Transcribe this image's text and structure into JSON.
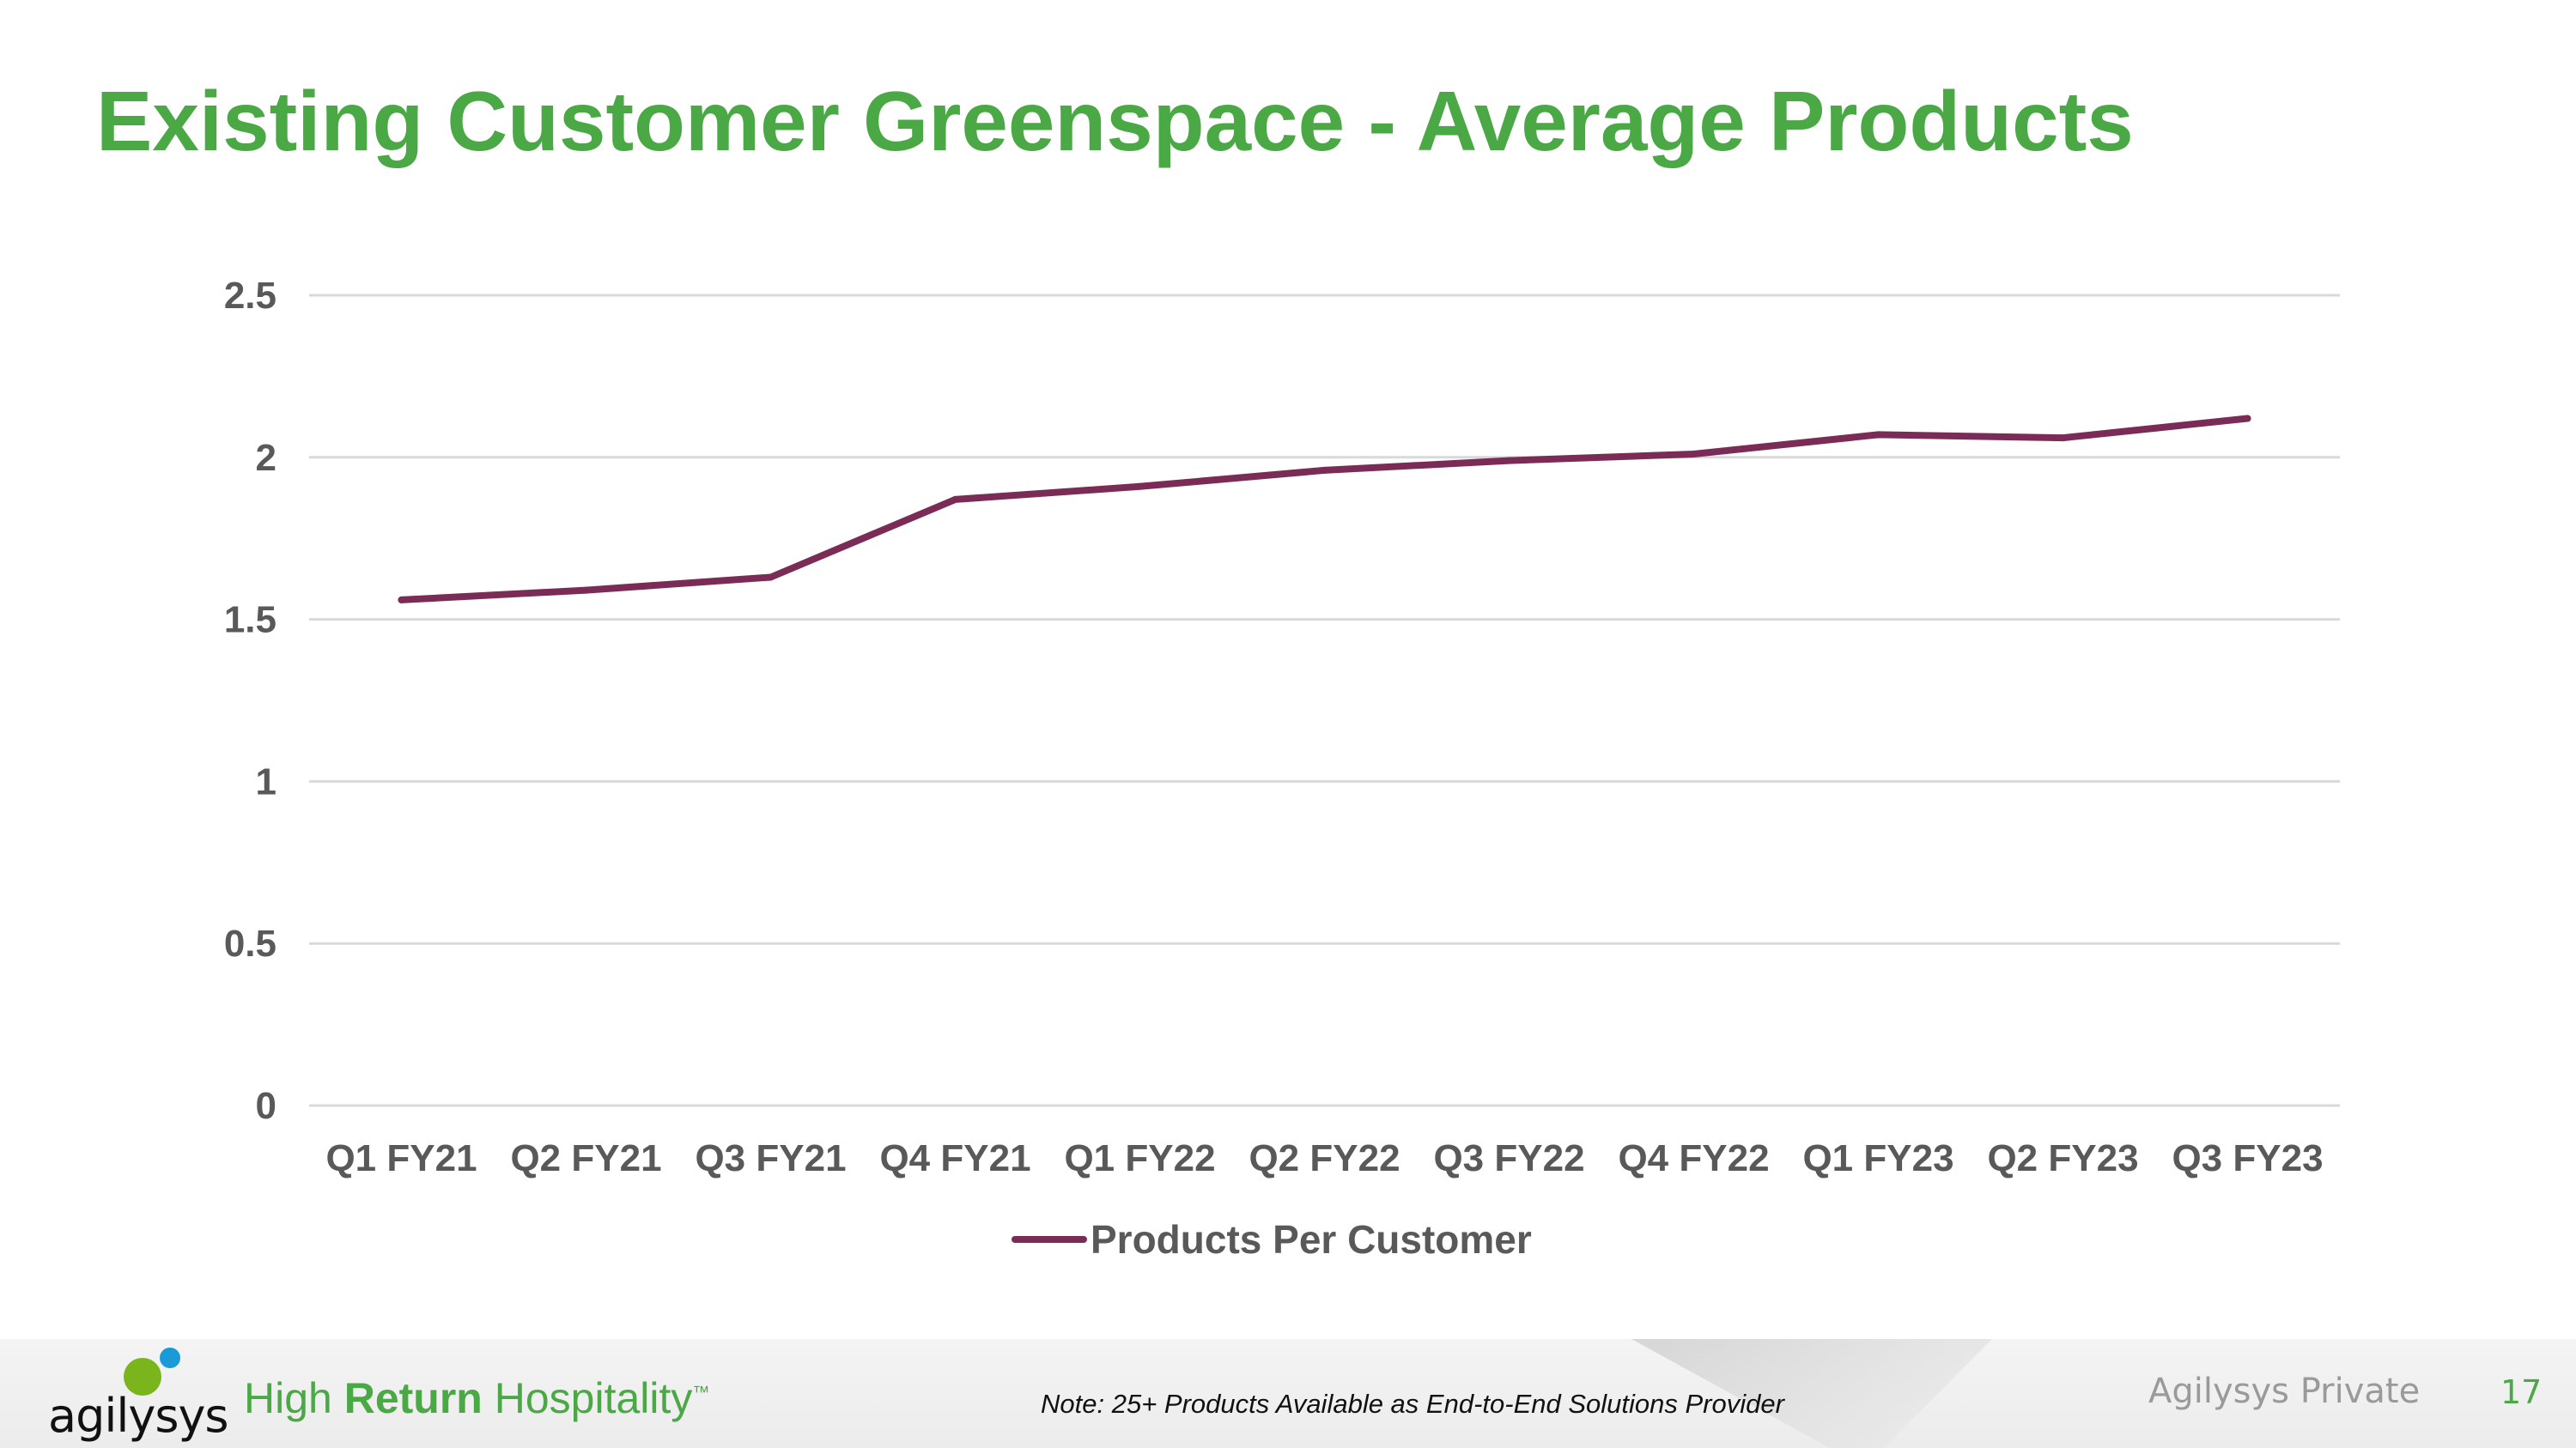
{
  "slide": {
    "title": "Existing Customer Greenspace - Average Products",
    "title_color": "#4aa845"
  },
  "chart_data": {
    "type": "line",
    "categories": [
      "Q1 FY21",
      "Q2 FY21",
      "Q3 FY21",
      "Q4 FY21",
      "Q1 FY22",
      "Q2 FY22",
      "Q3 FY22",
      "Q4 FY22",
      "Q1 FY23",
      "Q2 FY23",
      "Q3 FY23"
    ],
    "series": [
      {
        "name": "Products Per Customer",
        "values": [
          1.56,
          1.59,
          1.63,
          1.87,
          1.91,
          1.96,
          1.99,
          2.01,
          2.07,
          2.06,
          2.12
        ],
        "color": "#7a2c57"
      }
    ],
    "ylim": [
      0,
      2.5
    ],
    "yticks": [
      0,
      0.5,
      1,
      1.5,
      2,
      2.5
    ],
    "ytick_labels": [
      "0",
      "0.5",
      "1",
      "1.5",
      "2",
      "2.5"
    ],
    "grid": true,
    "legend_position": "bottom",
    "title": "",
    "xlabel": "",
    "ylabel": "",
    "label_color": "#595959",
    "grid_color": "#d9d9d9"
  },
  "footer": {
    "logo_text": "agilysys",
    "logo_green": "#7ab51d",
    "logo_blue": "#1a9ad6",
    "tagline_part1": "High ",
    "tagline_bold": "Return",
    "tagline_part2": " Hospitality",
    "tagline_tm": "™",
    "tagline_color": "#4aa845",
    "note": "Note: 25+ Products Available as End-to-End Solutions Provider",
    "private_label": "Agilysys Private",
    "page_number": "17",
    "page_number_color": "#4aa845"
  }
}
